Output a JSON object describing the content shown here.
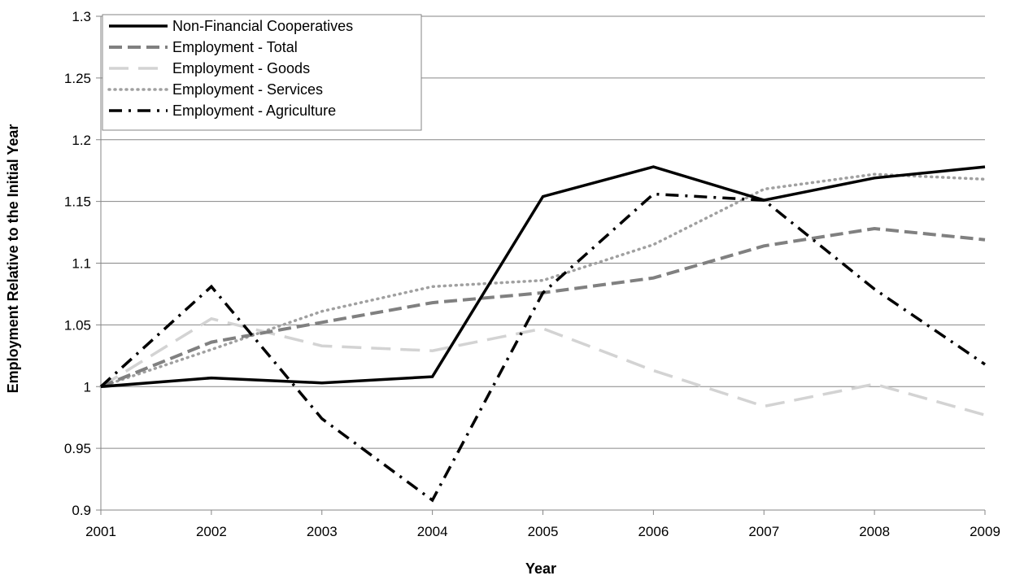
{
  "chart_data": {
    "type": "line",
    "xlabel": "Year",
    "ylabel": "Employment Relative to the Initial Year",
    "x": [
      2001,
      2002,
      2003,
      2004,
      2005,
      2006,
      2007,
      2008,
      2009
    ],
    "ylim": [
      0.9,
      1.3
    ],
    "yticks": [
      0.9,
      0.95,
      1,
      1.05,
      1.1,
      1.15,
      1.2,
      1.25,
      1.3
    ],
    "grid": "horizontal",
    "legend_position": "top-left",
    "series": [
      {
        "name": "Non-Financial Cooperatives",
        "values": [
          1.0,
          1.007,
          1.003,
          1.008,
          1.154,
          1.178,
          1.151,
          1.169,
          1.178
        ],
        "color": "#000000",
        "style": "solid"
      },
      {
        "name": "Employment - Total",
        "values": [
          1.0,
          1.036,
          1.052,
          1.068,
          1.076,
          1.088,
          1.114,
          1.128,
          1.119
        ],
        "color": "#808080",
        "style": "dashed"
      },
      {
        "name": "Employment - Goods",
        "values": [
          1.0,
          1.055,
          1.033,
          1.029,
          1.047,
          1.013,
          0.984,
          1.002,
          0.977
        ],
        "color": "#d3d3d3",
        "style": "long-dash"
      },
      {
        "name": "Employment - Services",
        "values": [
          1.0,
          1.03,
          1.061,
          1.081,
          1.086,
          1.115,
          1.16,
          1.172,
          1.168
        ],
        "color": "#a0a0a0",
        "style": "dotted"
      },
      {
        "name": "Employment - Agriculture",
        "values": [
          1.0,
          1.081,
          0.974,
          0.908,
          1.076,
          1.156,
          1.151,
          1.079,
          1.018
        ],
        "color": "#000000",
        "style": "dash-dot"
      }
    ]
  }
}
